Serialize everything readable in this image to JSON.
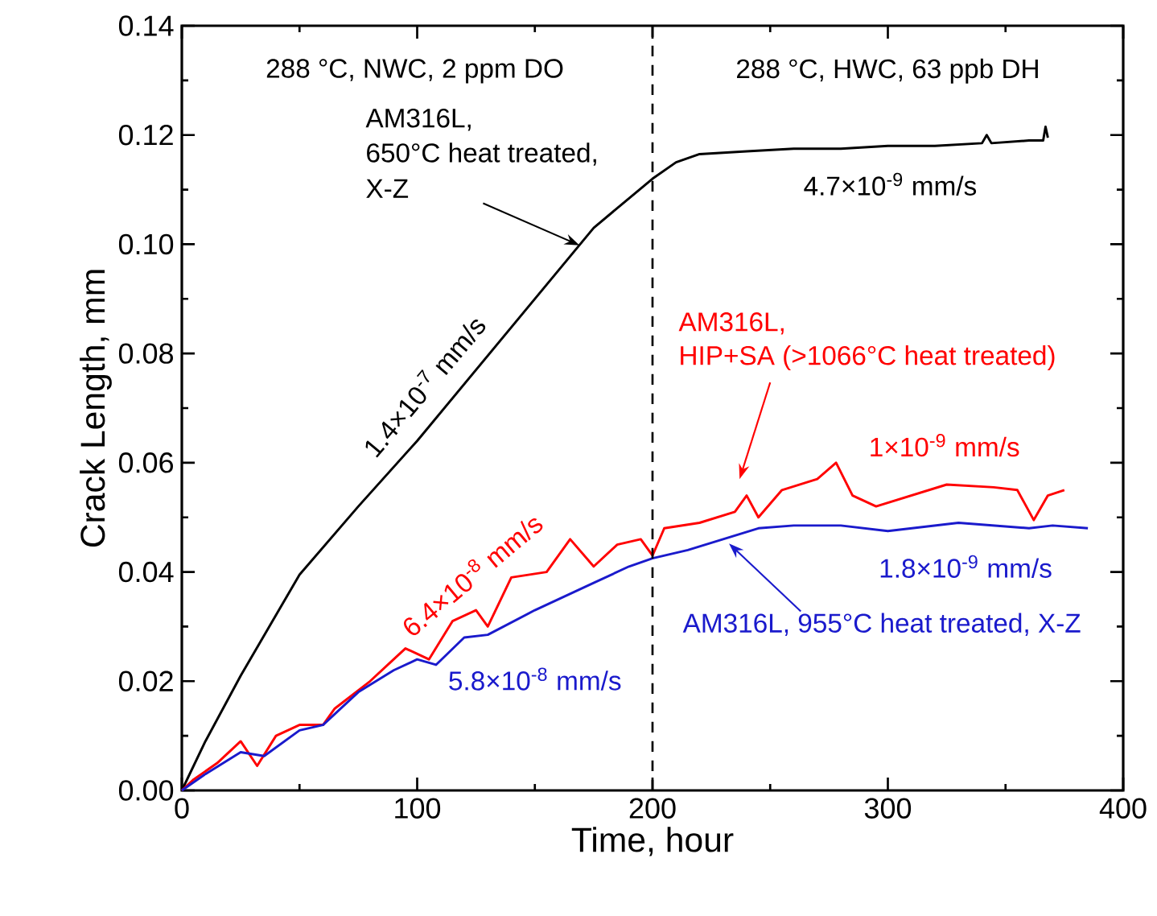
{
  "chart_data": {
    "type": "line",
    "xlabel": "Time, hour",
    "ylabel": "Crack Length, mm",
    "xlim": [
      0,
      400
    ],
    "ylim": [
      0,
      0.14
    ],
    "xticks": [
      0,
      100,
      200,
      300,
      400
    ],
    "yticks": [
      {
        "value": 0,
        "label": "0.00"
      },
      {
        "value": 0.02,
        "label": "0.02"
      },
      {
        "value": 0.04,
        "label": "0.04"
      },
      {
        "value": 0.06,
        "label": "0.06"
      },
      {
        "value": 0.08,
        "label": "0.08"
      },
      {
        "value": 0.1,
        "label": "0.10"
      },
      {
        "value": 0.12,
        "label": "0.12"
      },
      {
        "value": 0.14,
        "label": "0.14"
      }
    ],
    "marker": "none",
    "line_style": "solid",
    "grid": false,
    "series": [
      {
        "color": "#000000",
        "x": [
          0,
          10,
          25,
          50,
          75,
          100,
          125,
          150,
          175,
          200,
          210,
          220,
          240,
          260,
          280,
          300,
          320,
          340,
          342,
          344,
          360,
          366,
          367,
          368
        ],
        "values": [
          0,
          0.009,
          0.021,
          0.0395,
          0.052,
          0.064,
          0.077,
          0.09,
          0.103,
          0.112,
          0.115,
          0.1165,
          0.117,
          0.1175,
          0.1175,
          0.118,
          0.118,
          0.1185,
          0.12,
          0.1185,
          0.119,
          0.119,
          0.1215,
          0.1195
        ]
      },
      {
        "color": "#ff0000",
        "x": [
          0,
          5,
          15,
          25,
          32,
          40,
          50,
          60,
          65,
          80,
          90,
          95,
          105,
          115,
          125,
          130,
          140,
          155,
          165,
          175,
          185,
          195,
          200,
          205,
          220,
          235,
          240,
          245,
          255,
          270,
          278,
          285,
          295,
          310,
          325,
          345,
          355,
          362,
          368,
          375
        ],
        "values": [
          0,
          0.002,
          0.005,
          0.009,
          0.0045,
          0.01,
          0.012,
          0.012,
          0.015,
          0.02,
          0.024,
          0.026,
          0.024,
          0.031,
          0.033,
          0.03,
          0.039,
          0.04,
          0.046,
          0.041,
          0.045,
          0.046,
          0.043,
          0.048,
          0.049,
          0.051,
          0.054,
          0.05,
          0.055,
          0.057,
          0.06,
          0.054,
          0.052,
          0.054,
          0.056,
          0.0555,
          0.055,
          0.0495,
          0.054,
          0.055
        ]
      },
      {
        "color": "#1a1acc",
        "x": [
          0,
          10,
          25,
          35,
          50,
          60,
          75,
          90,
          100,
          108,
          120,
          130,
          150,
          175,
          190,
          200,
          215,
          230,
          245,
          260,
          280,
          300,
          330,
          360,
          370,
          385
        ],
        "values": [
          0,
          0.003,
          0.007,
          0.0063,
          0.011,
          0.012,
          0.018,
          0.022,
          0.024,
          0.023,
          0.028,
          0.0285,
          0.033,
          0.038,
          0.041,
          0.0425,
          0.044,
          0.046,
          0.048,
          0.0485,
          0.0485,
          0.0475,
          0.049,
          0.048,
          0.0485,
          0.048
        ]
      }
    ],
    "ref_lines": [
      {
        "axis": "x",
        "value": 200,
        "color": "#000000",
        "line_style": "dashed"
      }
    ],
    "annotations": [
      "288 °C, NWC, 2 ppm DO",
      "288 °C, HWC, 63 ppb DH",
      "AM316L,",
      "650°C heat treated,",
      "X-Z",
      "1.4×10$^{-7}$ mm/s",
      "4.7×10$^{-9}$ mm/s",
      "AM316L,",
      "HIP+SA (>1066°C heat treated)",
      "6.4×10$^{-8}$ mm/s",
      "1×10$^{-9}$ mm/s",
      "AM316L, 955°C heat treated, X-Z",
      "5.8×10$^{-8}$ mm/s",
      "1.8×10$^{-9}$ mm/s"
    ]
  }
}
